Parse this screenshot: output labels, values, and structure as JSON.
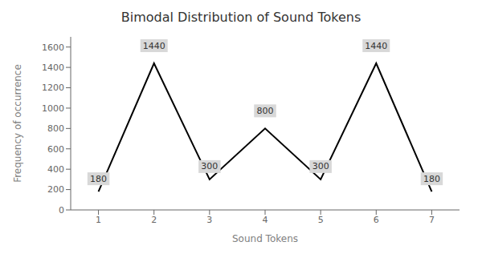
{
  "chart_data": {
    "type": "line",
    "title": "Bimodal Distribution of Sound Tokens",
    "xlabel": "Sound Tokens",
    "ylabel": "Frequency of occurrence",
    "x": [
      1,
      2,
      3,
      4,
      5,
      6,
      7
    ],
    "values": [
      180,
      1440,
      300,
      800,
      300,
      1440,
      180
    ],
    "color": "#000000",
    "xlim": [
      0.5,
      7.5
    ],
    "xticks": [
      1,
      2,
      3,
      4,
      5,
      6,
      7
    ],
    "ylim": [
      0,
      1700
    ],
    "yticks": [
      0,
      200,
      400,
      600,
      800,
      1000,
      1200,
      1400,
      1600
    ],
    "grid": false,
    "data_labels": true
  }
}
